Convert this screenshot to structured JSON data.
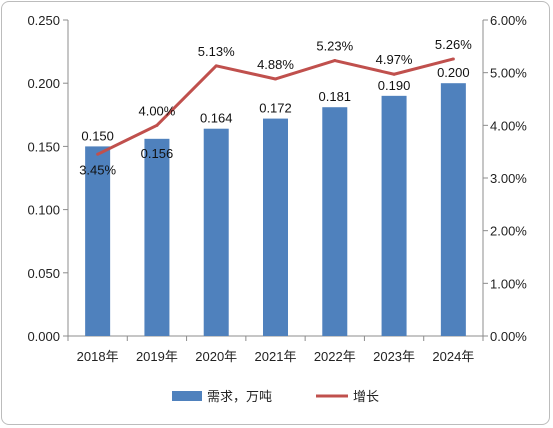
{
  "chart_data": {
    "type": "bar",
    "categories": [
      "2018年",
      "2019年",
      "2020年",
      "2021年",
      "2022年",
      "2023年",
      "2024年"
    ],
    "series": [
      {
        "name": "需求，万吨",
        "type": "bar",
        "axis": "left",
        "values": [
          0.15,
          0.156,
          0.164,
          0.172,
          0.181,
          0.19,
          0.2
        ],
        "labels": [
          "0.150",
          "0.156",
          "0.164",
          "0.172",
          "0.181",
          "0.190",
          "0.200"
        ],
        "color": "#4f81bd"
      },
      {
        "name": "增长",
        "type": "line",
        "axis": "right",
        "values": [
          3.45,
          4.0,
          5.13,
          4.88,
          5.23,
          4.97,
          5.26
        ],
        "labels": [
          "3.45%",
          "4.00%",
          "5.13%",
          "4.88%",
          "5.23%",
          "4.97%",
          "5.26%"
        ],
        "color": "#c0504d"
      }
    ],
    "y_left": {
      "ylim": [
        0,
        0.25
      ],
      "ticks": [
        "0.000",
        "0.050",
        "0.100",
        "0.150",
        "0.200",
        "0.250"
      ]
    },
    "y_right": {
      "ylim": [
        0,
        6
      ],
      "ticks": [
        "0.00%",
        "1.00%",
        "2.00%",
        "3.00%",
        "4.00%",
        "5.00%",
        "6.00%"
      ]
    },
    "grid": false,
    "legend": "bottom"
  }
}
